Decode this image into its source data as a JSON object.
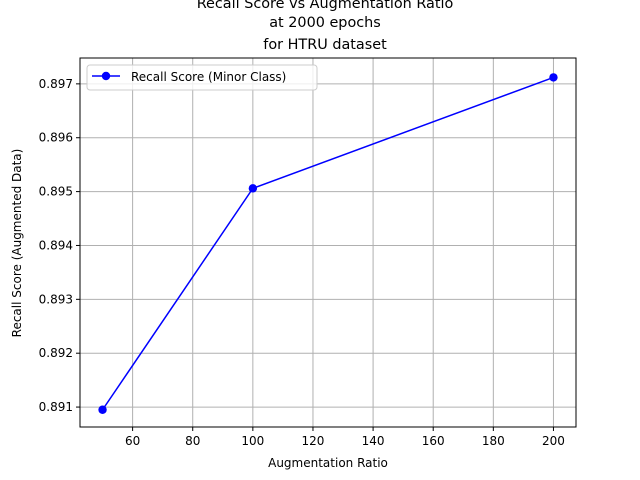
{
  "chart_data": {
    "type": "line",
    "title_lines": [
      "Recall Score vs Augmentation Ratio",
      "at 2000 epochs",
      "for HTRU dataset"
    ],
    "xlabel": "Augmentation Ratio",
    "ylabel": "Recall Score (Augmented Data)",
    "xlim": [
      42.5,
      207.5
    ],
    "ylim": [
      0.89063,
      0.89748
    ],
    "xticks": [
      60,
      80,
      100,
      120,
      140,
      160,
      180,
      200
    ],
    "xtick_labels": [
      "60",
      "80",
      "100",
      "120",
      "140",
      "160",
      "180",
      "200"
    ],
    "yticks": [
      0.891,
      0.892,
      0.893,
      0.894,
      0.895,
      0.896,
      0.897
    ],
    "ytick_labels": [
      "0.891",
      "0.892",
      "0.893",
      "0.894",
      "0.895",
      "0.896",
      "0.897"
    ],
    "grid": true,
    "legend_position": "top-left",
    "series": [
      {
        "name": "Recall Score (Minor Class)",
        "color": "#0000ff",
        "marker": "circle",
        "x": [
          50,
          100,
          200
        ],
        "y": [
          0.89095,
          0.89506,
          0.89712
        ]
      }
    ]
  }
}
